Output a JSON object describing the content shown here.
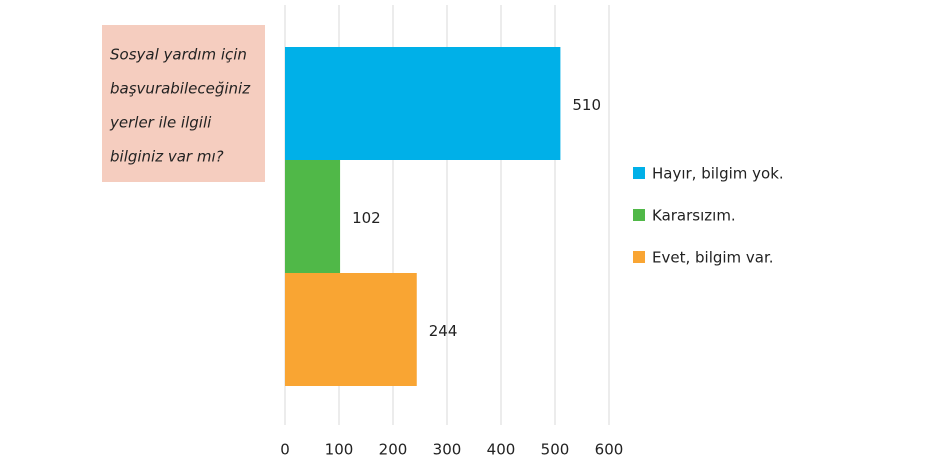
{
  "chart_data": {
    "type": "bar",
    "orientation": "horizontal",
    "title_lines": [
      "Sosyal yardım için",
      "başvurabileceğiniz",
      "yerler ile ilgili",
      "bilginiz var mı?"
    ],
    "categories": [
      null
    ],
    "series": [
      {
        "name": "Hayır, bilgim yok.",
        "color": "#00b0e8",
        "values": [
          510
        ]
      },
      {
        "name": "Kararsızım.",
        "color": "#50b848",
        "values": [
          102
        ]
      },
      {
        "name": "Evet, bilgim var.",
        "color": "#f9a533",
        "values": [
          244
        ]
      }
    ],
    "xlim": [
      0,
      600
    ],
    "xticks": [
      0,
      100,
      200,
      300,
      400,
      500,
      600
    ],
    "grid": true,
    "legend": "right"
  }
}
